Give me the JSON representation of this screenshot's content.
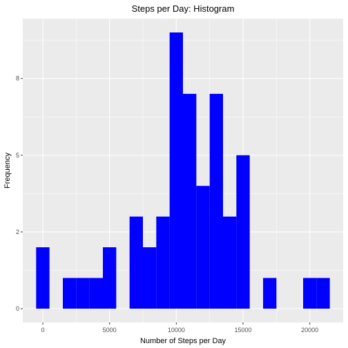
{
  "chart_data": {
    "type": "bar",
    "title": "Steps per Day: Histogram",
    "xlabel": "Number of Steps per Day",
    "ylabel": "Frequency",
    "x_ticks": [
      0,
      5000,
      10000,
      15000,
      20000
    ],
    "x_tick_labels": [
      "0",
      "5000",
      "10000",
      "15000",
      "20000"
    ],
    "y_ticks": [
      0,
      2.5,
      5,
      7.5
    ],
    "y_tick_labels": [
      "0",
      "2",
      "5",
      "8"
    ],
    "xlim": [
      -1500,
      22500
    ],
    "ylim": [
      -0.45,
      9.45
    ],
    "bin_width": 1000,
    "bin_centers": [
      0,
      1000,
      2000,
      3000,
      4000,
      5000,
      6000,
      7000,
      8000,
      9000,
      10000,
      11000,
      12000,
      13000,
      14000,
      15000,
      16000,
      17000,
      18000,
      19000,
      20000,
      21000
    ],
    "values": [
      2,
      0,
      1,
      1,
      1,
      2,
      0,
      3,
      2,
      3,
      9,
      7,
      4,
      7,
      3,
      5,
      0,
      1,
      0,
      0,
      1,
      1
    ],
    "bar_color": "#0000FF",
    "panel_bg": "#EBEBEB",
    "grid_major_color": "#FFFFFF",
    "grid": true,
    "legend": "none"
  }
}
